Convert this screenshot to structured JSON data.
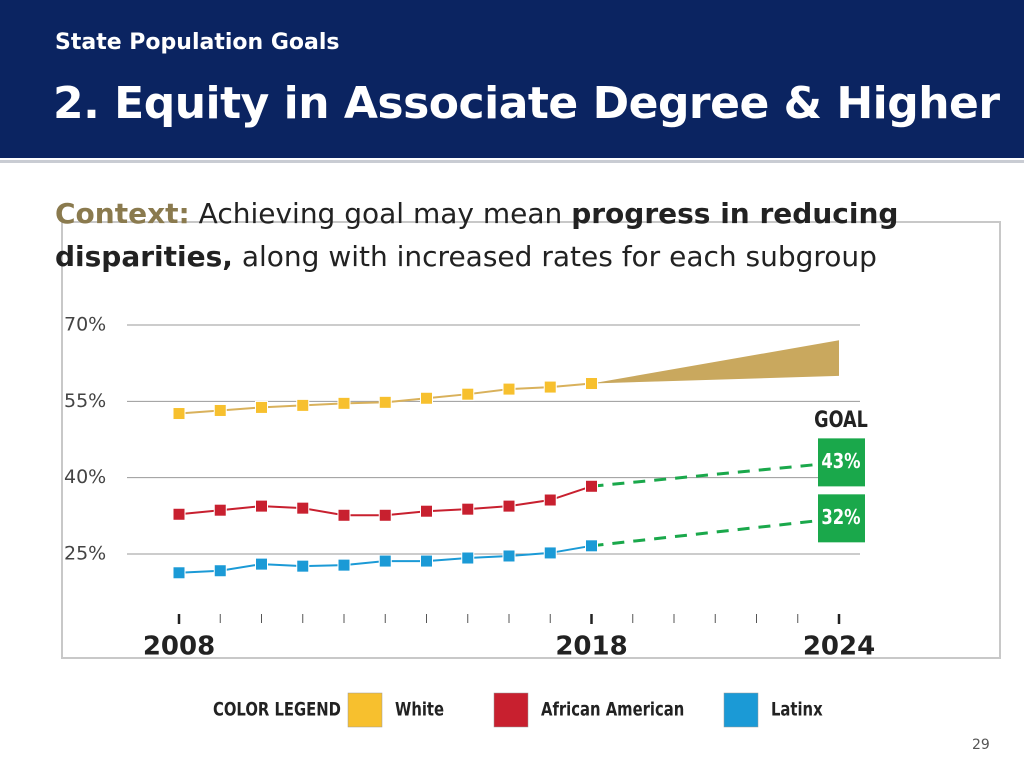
{
  "header": {
    "subtitle": "State Population Goals",
    "title": "2. Equity in Associate Degree & Higher"
  },
  "context": {
    "label": "Context:",
    "text1": "Achieving goal may mean",
    "bold": "progress in reducing disparities,",
    "text2": "along with increased rates for each subgroup"
  },
  "chart_data": {
    "type": "line",
    "x": [
      2008,
      2009,
      2010,
      2011,
      2012,
      2013,
      2014,
      2015,
      2016,
      2017,
      2018
    ],
    "xlim": [
      2008,
      2024
    ],
    "xticks": [
      2008,
      2018,
      2024
    ],
    "minor_xticks": [
      2009,
      2010,
      2011,
      2012,
      2013,
      2014,
      2015,
      2016,
      2017,
      2019,
      2020,
      2021,
      2022,
      2023
    ],
    "ylim": [
      13,
      70
    ],
    "yticks": [
      {
        "value": 25,
        "label": "25%"
      },
      {
        "value": 40,
        "label": "40%"
      },
      {
        "value": 55,
        "label": "55%"
      },
      {
        "value": 70,
        "label": "70%"
      }
    ],
    "grid": true,
    "goal_title": "GOAL",
    "legend_title": "COLOR LEGEND",
    "series": [
      {
        "name": "White",
        "color": "#f7c02e",
        "line_color": "#d9b15b",
        "values": [
          52.6,
          53.2,
          53.8,
          54.2,
          54.6,
          54.8,
          55.6,
          56.4,
          57.4,
          57.8,
          58.5
        ],
        "band": {
          "x": [
            2018,
            2024
          ],
          "high": [
            58.5,
            67
          ],
          "low": [
            58.5,
            60
          ],
          "color": "#c9a85e"
        }
      },
      {
        "name": "African American",
        "color": "#c8202f",
        "line_color": "#c8202f",
        "values": [
          32.8,
          33.6,
          34.4,
          34.0,
          32.6,
          32.6,
          33.4,
          33.8,
          34.4,
          35.6,
          38.3
        ],
        "projection": {
          "x": [
            2018,
            2024
          ],
          "values": [
            38.3,
            43
          ]
        },
        "goal_label": "43%"
      },
      {
        "name": "Latinx",
        "color": "#1b9ad6",
        "line_color": "#1b9ad6",
        "values": [
          21.3,
          21.7,
          23.0,
          22.6,
          22.8,
          23.6,
          23.6,
          24.2,
          24.6,
          25.2,
          26.6
        ],
        "projection": {
          "x": [
            2018,
            2024
          ],
          "values": [
            26.6,
            32
          ]
        },
        "goal_label": "32%"
      }
    ],
    "goal_color": "#1aa84b"
  },
  "page_number": "29"
}
